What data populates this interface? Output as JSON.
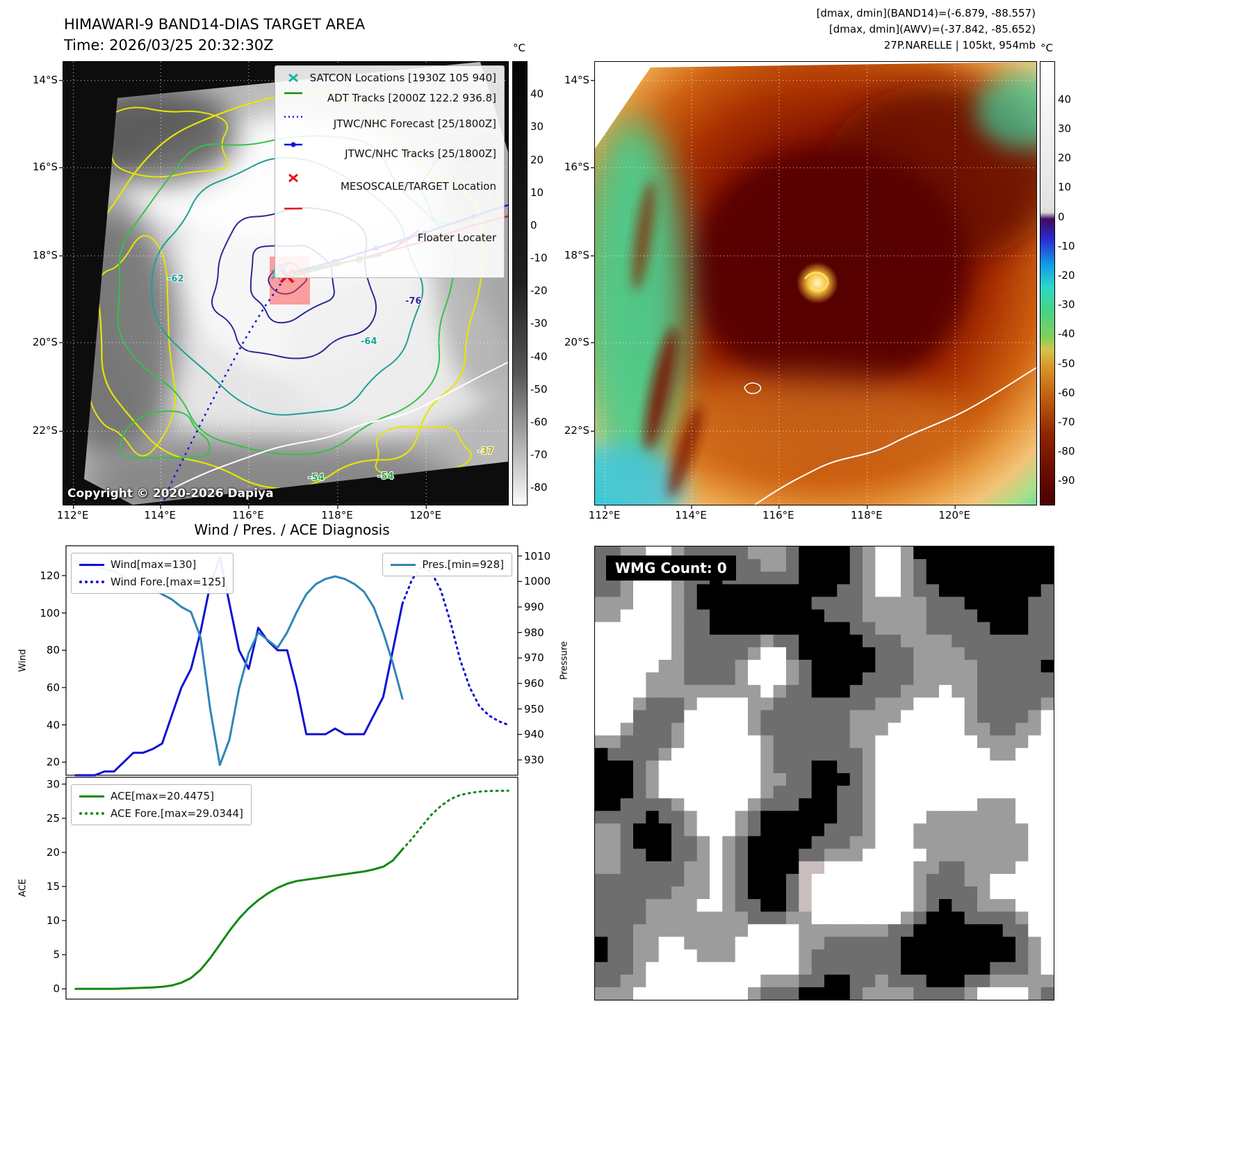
{
  "panel_band14": {
    "title": "HIMAWARI-9 BAND14-DIAS TARGET AREA",
    "subtitle": "Time: 2026/03/25 20:32:30Z",
    "copyright": "Copyright © 2020-2026 Dapiya",
    "colorbar_label": "°C",
    "colorbar_ticks": [
      40,
      30,
      20,
      10,
      0,
      -10,
      -20,
      -30,
      -40,
      -50,
      -60,
      -70,
      -80
    ],
    "lat_ticks": [
      "14°S",
      "16°S",
      "18°S",
      "20°S",
      "22°S"
    ],
    "lon_ticks": [
      "112°E",
      "114°E",
      "116°E",
      "118°E",
      "120°E"
    ],
    "contour_labels": [
      "-62",
      "-64",
      "-76",
      "-54",
      "-54",
      "-37"
    ],
    "legend": [
      {
        "label": "SATCON Locations [1930Z 105 940]",
        "marker": "x",
        "color": "#14b4ac"
      },
      {
        "label": "ADT Tracks [2000Z 122.2 936.8]",
        "marker": "line",
        "color": "#0c8c0c"
      },
      {
        "label": "JTWC/NHC Forecast [25/1800Z]",
        "marker": "dotted",
        "color": "#1212dc"
      },
      {
        "label": "JTWC/NHC Tracks [25/1800Z]",
        "marker": "line-dot",
        "color": "#1212dc"
      },
      {
        "label": "MESOSCALE/TARGET Location",
        "marker": "x",
        "color": "#e41212"
      },
      {
        "label": "Floater Locater",
        "marker": "line",
        "color": "#e41212"
      }
    ]
  },
  "panel_ir": {
    "info_lines": [
      "[dmax, dmin](BAND14)=(-6.879, -88.557)",
      "[dmax, dmin](AWV)=(-37.842, -85.652)",
      "27P.NARELLE | 105kt, 954mb"
    ],
    "colorbar_label": "°C",
    "colorbar_ticks": [
      40,
      30,
      20,
      10,
      0,
      -10,
      -20,
      -30,
      -40,
      -50,
      -60,
      -70,
      -80,
      -90
    ],
    "lat_ticks": [
      "14°S",
      "16°S",
      "18°S",
      "20°S",
      "22°S"
    ],
    "lon_ticks": [
      "112°E",
      "114°E",
      "116°E",
      "118°E",
      "120°E"
    ]
  },
  "panel_diagnosis": {
    "title": "Wind / Pres. / ACE Diagnosis",
    "ylabel_wind": "Wind",
    "ylabel_pressure": "Pressure",
    "ylabel_ace": "ACE",
    "wind_legend": [
      {
        "label": "Wind[max=130]",
        "style": "solid",
        "color": "#0f0fd8"
      },
      {
        "label": "Wind Fore.[max=125]",
        "style": "dotted",
        "color": "#0f0fd8"
      }
    ],
    "pres_legend": [
      {
        "label": "Pres.[min=928]",
        "style": "solid",
        "color": "#2e86b5"
      }
    ],
    "ace_legend": [
      {
        "label": "ACE[max=20.4475]",
        "style": "solid",
        "color": "#0f8a0f"
      },
      {
        "label": "ACE Fore.[max=29.0344]",
        "style": "dotted",
        "color": "#0f8a0f"
      }
    ]
  },
  "panel_wmg": {
    "count_label": "WMG Count: 0"
  },
  "chart_data": [
    {
      "type": "line",
      "title": "Wind / Pres. / ACE Diagnosis",
      "ylabel": "Wind",
      "ylabel_right": "Pressure",
      "xlim": [
        0,
        47
      ],
      "ylim_left": [
        13,
        136
      ],
      "ylim_right": [
        924,
        1014
      ],
      "yticks_left": [
        20,
        40,
        60,
        80,
        100,
        120
      ],
      "yticks_right": [
        930,
        940,
        950,
        960,
        970,
        980,
        990,
        1000,
        1010
      ],
      "grid": false,
      "legend_position": "upper-left and upper-right",
      "series": [
        {
          "name": "Wind[max=130]",
          "axis": "left",
          "style": "solid",
          "color": "#0f0fd8",
          "x": [
            1,
            2,
            3,
            4,
            5,
            6,
            7,
            8,
            9,
            10,
            11,
            12,
            13,
            14,
            15,
            16,
            17,
            18,
            19,
            20,
            21,
            22,
            23,
            24,
            25,
            26,
            27,
            28,
            29,
            30,
            31,
            32,
            33,
            34,
            35
          ],
          "values": [
            13,
            13,
            13,
            15,
            15,
            20,
            25,
            25,
            27,
            30,
            45,
            60,
            70,
            90,
            115,
            130,
            105,
            80,
            70,
            92,
            85,
            80,
            80,
            60,
            35,
            35,
            35,
            38,
            35,
            35,
            35,
            45,
            55,
            80,
            105
          ]
        },
        {
          "name": "Wind Fore.[max=125]",
          "axis": "left",
          "style": "dotted",
          "color": "#0f0fd8",
          "x": [
            35,
            36,
            37,
            38,
            39,
            40,
            41,
            42,
            43,
            44,
            45,
            46
          ],
          "values": [
            105,
            118,
            125,
            122,
            112,
            95,
            75,
            60,
            50,
            45,
            42,
            40
          ]
        },
        {
          "name": "Pres.[min=928]",
          "axis": "right",
          "style": "solid",
          "color": "#2e86b5",
          "x": [
            1,
            2,
            3,
            4,
            5,
            6,
            7,
            8,
            9,
            10,
            11,
            12,
            13,
            14,
            15,
            16,
            17,
            18,
            19,
            20,
            21,
            22,
            23,
            24,
            25,
            26,
            27,
            28,
            29,
            30,
            31,
            32,
            33,
            34,
            35
          ],
          "values": [
            1008,
            1007,
            1006,
            1005,
            1004,
            1002,
            1000,
            999,
            997,
            995,
            993,
            990,
            988,
            978,
            950,
            928,
            938,
            958,
            972,
            980,
            977,
            974,
            980,
            988,
            995,
            999,
            1001,
            1002,
            1001,
            999,
            996,
            990,
            980,
            968,
            954
          ]
        }
      ]
    },
    {
      "type": "line",
      "ylabel": "ACE",
      "xlim": [
        0,
        47
      ],
      "ylim": [
        -1.5,
        31
      ],
      "yticks": [
        0,
        5,
        10,
        15,
        20,
        25,
        30
      ],
      "grid": false,
      "legend_position": "upper-left",
      "series": [
        {
          "name": "ACE[max=20.4475]",
          "style": "solid",
          "color": "#0f8a0f",
          "x": [
            1,
            2,
            3,
            4,
            5,
            6,
            7,
            8,
            9,
            10,
            11,
            12,
            13,
            14,
            15,
            16,
            17,
            18,
            19,
            20,
            21,
            22,
            23,
            24,
            25,
            26,
            27,
            28,
            29,
            30,
            31,
            32,
            33,
            34,
            35
          ],
          "values": [
            0,
            0,
            0,
            0,
            0,
            0.05,
            0.1,
            0.15,
            0.2,
            0.3,
            0.5,
            0.9,
            1.6,
            2.8,
            4.5,
            6.5,
            8.5,
            10.3,
            11.8,
            13,
            14,
            14.8,
            15.4,
            15.8,
            16,
            16.2,
            16.4,
            16.6,
            16.8,
            17,
            17.2,
            17.5,
            17.9,
            18.8,
            20.4475
          ]
        },
        {
          "name": "ACE Fore.[max=29.0344]",
          "style": "dotted",
          "color": "#0f8a0f",
          "x": [
            35,
            36,
            37,
            38,
            39,
            40,
            41,
            42,
            43,
            44,
            45,
            46
          ],
          "values": [
            20.4475,
            22,
            23.8,
            25.5,
            26.8,
            27.8,
            28.4,
            28.7,
            28.9,
            29,
            29.02,
            29.0344
          ]
        }
      ]
    }
  ]
}
